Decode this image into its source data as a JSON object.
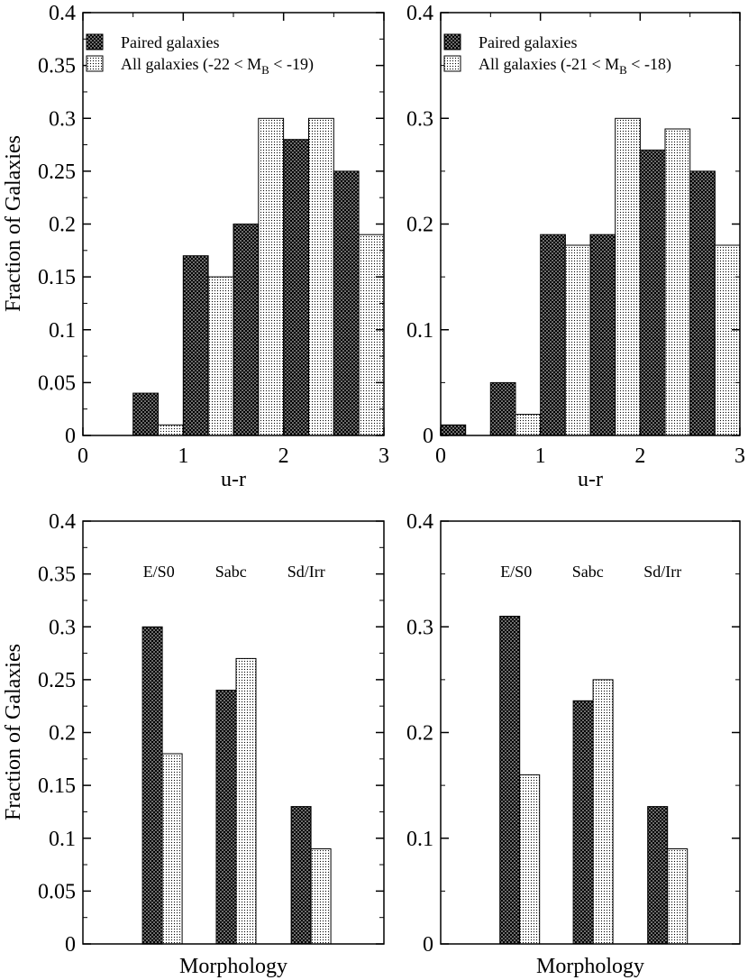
{
  "figure": {
    "ylabel": "Fraction of Galaxies",
    "colors": {
      "paired_bar": "#000000",
      "paired_dots": "#ffffff",
      "all_bar": "#ffffff",
      "all_dots": "#000000",
      "axis": "#000000"
    }
  },
  "chart_data": [
    {
      "type": "bar",
      "panel": "top-left",
      "xlabel": "u-r",
      "ylabel": "Fraction of Galaxies",
      "xlim": [
        0,
        3
      ],
      "ylim": [
        0,
        0.4
      ],
      "xticks": [
        "0",
        "1",
        "2",
        "3"
      ],
      "yticks": [
        "0",
        "0.05",
        "0.1",
        "0.15",
        "0.2",
        "0.25",
        "0.3",
        "0.35",
        "0.4"
      ],
      "legend_placement": "top-left",
      "legend": {
        "paired": "Paired galaxies",
        "all_prefix": "All galaxies (-22 < M",
        "all_sub": "B",
        "all_suffix": " < -19)"
      },
      "bin_width": 0.5,
      "bins": [
        0.25,
        0.75,
        1.25,
        1.75,
        2.25,
        2.75
      ],
      "series": [
        {
          "name": "Paired galaxies",
          "values": [
            0.0,
            0.04,
            0.17,
            0.2,
            0.28,
            0.25
          ]
        },
        {
          "name": "All galaxies",
          "values": [
            0.0,
            0.01,
            0.15,
            0.3,
            0.3,
            0.19
          ]
        }
      ]
    },
    {
      "type": "bar",
      "panel": "top-right",
      "xlabel": "u-r",
      "ylabel": "",
      "xlim": [
        0,
        3
      ],
      "ylim": [
        0,
        0.4
      ],
      "xticks": [
        "0",
        "1",
        "2",
        "3"
      ],
      "yticks": [
        "0",
        "0.1",
        "0.2",
        "0.3",
        "0.4"
      ],
      "legend_placement": "top-left",
      "legend": {
        "paired": "Paired galaxies",
        "all_prefix": "All galaxies (-21 < M",
        "all_sub": "B",
        "all_suffix": " < -18)"
      },
      "bin_width": 0.5,
      "bins": [
        0.25,
        0.75,
        1.25,
        1.75,
        2.25,
        2.75
      ],
      "series": [
        {
          "name": "Paired galaxies",
          "values": [
            0.01,
            0.05,
            0.19,
            0.19,
            0.27,
            0.25
          ]
        },
        {
          "name": "All galaxies",
          "values": [
            0.0,
            0.02,
            0.18,
            0.3,
            0.29,
            0.18
          ]
        }
      ]
    },
    {
      "type": "bar",
      "panel": "bottom-left",
      "xlabel": "Morphology",
      "ylabel": "Fraction of Galaxies",
      "ylim": [
        0,
        0.4
      ],
      "yticks": [
        "0",
        "0.05",
        "0.1",
        "0.15",
        "0.2",
        "0.25",
        "0.3",
        "0.35",
        "0.4"
      ],
      "categories": [
        "E/S0",
        "Sabc",
        "Sd/Irr"
      ],
      "series": [
        {
          "name": "Paired galaxies",
          "values": [
            0.3,
            0.24,
            0.13
          ]
        },
        {
          "name": "All galaxies",
          "values": [
            0.18,
            0.27,
            0.09
          ]
        }
      ]
    },
    {
      "type": "bar",
      "panel": "bottom-right",
      "xlabel": "Morphology",
      "ylabel": "",
      "ylim": [
        0,
        0.4
      ],
      "yticks": [
        "0",
        "0.1",
        "0.2",
        "0.3",
        "0.4"
      ],
      "categories": [
        "E/S0",
        "Sabc",
        "Sd/Irr"
      ],
      "series": [
        {
          "name": "Paired galaxies",
          "values": [
            0.31,
            0.23,
            0.13
          ]
        },
        {
          "name": "All galaxies",
          "values": [
            0.16,
            0.25,
            0.09
          ]
        }
      ]
    }
  ]
}
